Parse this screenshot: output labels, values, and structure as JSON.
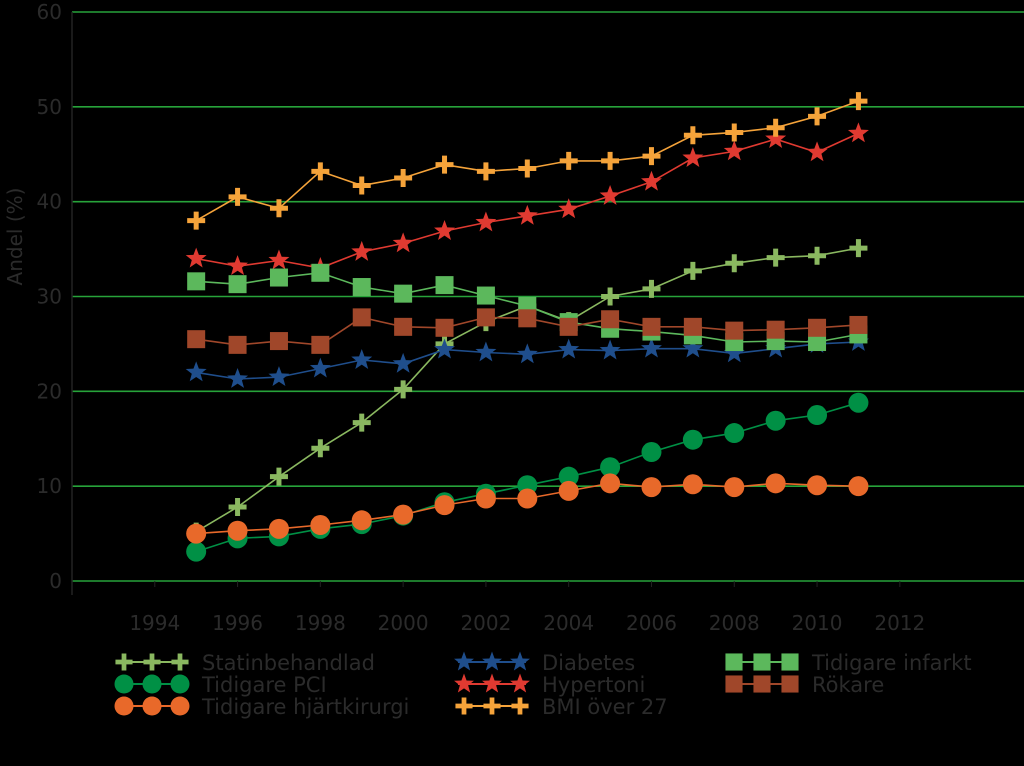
{
  "chart_data": {
    "type": "line",
    "ylabel": "Andel (%)",
    "xlabel": "",
    "title": "",
    "xlim": [
      1992,
      2015
    ],
    "ylim": [
      0,
      60
    ],
    "xticks": [
      "1994",
      "1996",
      "1998",
      "2000",
      "2002",
      "2004",
      "2006",
      "2008",
      "2010",
      "2012"
    ],
    "yticks": [
      "0",
      "10",
      "20",
      "30",
      "40",
      "50",
      "60"
    ],
    "grid": "horizontal",
    "legend_position": "bottom",
    "x": [
      1995,
      1996,
      1997,
      1998,
      1999,
      2000,
      2001,
      2002,
      2003,
      2004,
      2005,
      2006,
      2007,
      2008,
      2009,
      2010,
      2011
    ],
    "series": [
      {
        "name": "Statinbehandlad",
        "color": "#8ab860",
        "marker": "plus",
        "values": [
          5.2,
          7.8,
          11.0,
          14.0,
          16.7,
          20.2,
          25.0,
          27.3,
          29.0,
          27.4,
          30.0,
          30.8,
          32.7,
          33.5,
          34.1,
          34.3,
          35.1
        ]
      },
      {
        "name": "Tidigare PCI",
        "color": "#009045",
        "marker": "circle",
        "values": [
          3.1,
          4.5,
          4.7,
          5.5,
          6.0,
          6.9,
          8.3,
          9.2,
          10.1,
          11.0,
          12.0,
          13.6,
          14.9,
          15.6,
          16.9,
          17.5,
          18.8
        ]
      },
      {
        "name": "Tidigare hjärtkirurgi",
        "color": "#e8692a",
        "marker": "circle",
        "values": [
          5.0,
          5.3,
          5.5,
          5.9,
          6.4,
          7.0,
          8.0,
          8.7,
          8.7,
          9.5,
          10.3,
          9.9,
          10.2,
          9.9,
          10.3,
          10.1,
          10.0
        ]
      },
      {
        "name": "Diabetes",
        "color": "#1f4e8c",
        "marker": "star",
        "values": [
          22.0,
          21.3,
          21.5,
          22.4,
          23.3,
          22.9,
          24.4,
          24.1,
          23.9,
          24.4,
          24.3,
          24.5,
          24.5,
          24.0,
          24.5,
          25.0,
          25.2
        ]
      },
      {
        "name": "Hypertoni",
        "color": "#e03a31",
        "marker": "star",
        "values": [
          34.0,
          33.2,
          33.8,
          33.0,
          34.7,
          35.6,
          36.9,
          37.8,
          38.5,
          39.2,
          40.6,
          42.1,
          44.6,
          45.3,
          46.6,
          45.2,
          47.2
        ]
      },
      {
        "name": "BMI över 27",
        "color": "#f5a33a",
        "marker": "plus",
        "values": [
          38.0,
          40.5,
          39.3,
          43.2,
          41.7,
          42.5,
          43.9,
          43.2,
          43.5,
          44.3,
          44.3,
          44.8,
          47.0,
          47.3,
          47.8,
          49.0,
          50.6
        ]
      },
      {
        "name": "Tidigare infarkt",
        "color": "#5cb85c",
        "marker": "square",
        "values": [
          31.6,
          31.3,
          32.0,
          32.5,
          31.0,
          30.3,
          31.2,
          30.1,
          29.0,
          27.3,
          26.6,
          26.3,
          25.9,
          25.2,
          25.3,
          25.2,
          26.0
        ]
      },
      {
        "name": "Rökare",
        "color": "#a0472a",
        "marker": "square",
        "values": [
          25.5,
          24.9,
          25.3,
          24.9,
          27.8,
          26.8,
          26.7,
          27.8,
          27.7,
          26.8,
          27.6,
          26.8,
          26.8,
          26.4,
          26.5,
          26.7,
          27.0
        ]
      }
    ]
  }
}
